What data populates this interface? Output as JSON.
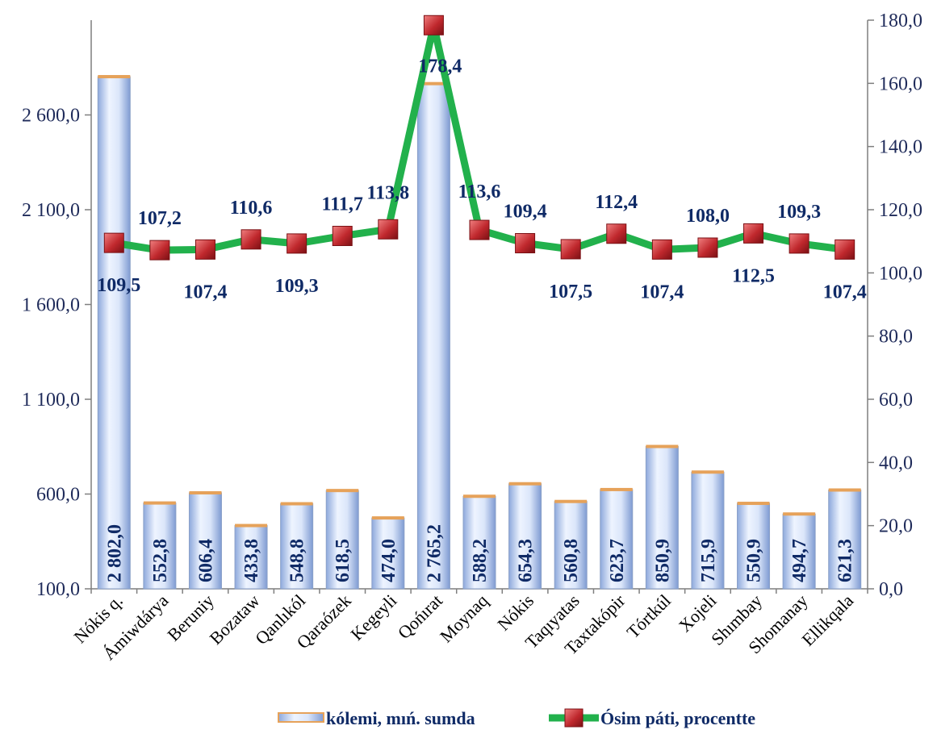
{
  "chart_data": {
    "type": "bar",
    "categories": [
      "Nókis q.",
      "Ámiwdárya",
      "Beruniy",
      "Bozataw",
      "Qanlıkól",
      "Qaraózek",
      "Kegeyli",
      "Qońırat",
      "Moynaq",
      "Nókis",
      "Taqıyatas",
      "Taxtakópir",
      "Tórtkúl",
      "Xojeli",
      "Shımbay",
      "Shomanay",
      "Ellikqala"
    ],
    "series": [
      {
        "name": "kólemi, mıń. sumda",
        "type": "bar",
        "axis": "left",
        "values": [
          2802.0,
          552.8,
          606.4,
          433.8,
          548.8,
          618.5,
          474.0,
          2765.2,
          588.2,
          654.3,
          560.8,
          623.7,
          850.9,
          715.9,
          550.9,
          494.7,
          621.3
        ],
        "labels": [
          "2 802,0",
          "552,8",
          "606,4",
          "433,8",
          "548,8",
          "618,5",
          "474,0",
          "2 765,2",
          "588,2",
          "654,3",
          "560,8",
          "623,7",
          "850,9",
          "715,9",
          "550,9",
          "494,7",
          "621,3"
        ]
      },
      {
        "name": "Ósim páti, procentte",
        "type": "line",
        "axis": "right",
        "values": [
          109.5,
          107.2,
          107.4,
          110.6,
          109.3,
          111.7,
          113.8,
          178.4,
          113.6,
          109.4,
          107.5,
          112.4,
          107.4,
          108.0,
          112.5,
          109.3,
          107.4
        ],
        "labels": [
          "109,5",
          "107,2",
          "107,4",
          "110,6",
          "109,3",
          "111,7",
          "113,8",
          "178,4",
          "113,6",
          "109,4",
          "107,5",
          "112,4",
          "107,4",
          "108,0",
          "112,5",
          "109,3",
          "107,4"
        ]
      }
    ],
    "y_left": {
      "range": [
        100,
        3100
      ],
      "ticks": [
        100,
        600,
        1100,
        1600,
        2100,
        2600
      ],
      "tick_labels": [
        "100,0",
        "600,0",
        "1 100,0",
        "1 600,0",
        "2 100,0",
        "2 600,0"
      ]
    },
    "y_right": {
      "range": [
        0,
        180
      ],
      "ticks": [
        0,
        20,
        40,
        60,
        80,
        100,
        120,
        140,
        160,
        180
      ],
      "tick_labels": [
        "0,0",
        "20,0",
        "40,0",
        "60,0",
        "80,0",
        "100,0",
        "120,0",
        "140,0",
        "160,0",
        "180,0"
      ]
    },
    "grid": false,
    "legend": "bottom",
    "colors": {
      "bar_fill_light": "#eef4ff",
      "bar_fill_dark": "#9fb8e6",
      "bar_edge": "#e6a25a",
      "line": "#22b14c",
      "marker": "#c0282d",
      "label": "#0f2a66"
    }
  }
}
